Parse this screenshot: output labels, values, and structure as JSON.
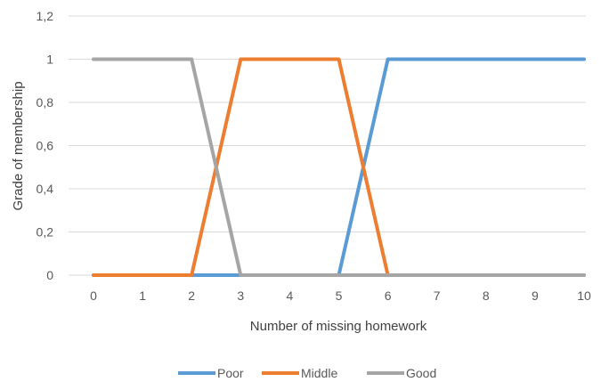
{
  "chart_data": {
    "type": "line",
    "title": "",
    "xlabel": "Number of missing homework",
    "ylabel": "Grade of membership",
    "x": [
      0,
      1,
      2,
      3,
      4,
      5,
      6,
      7,
      8,
      9,
      10
    ],
    "x_tick_labels": [
      "0",
      "1",
      "2",
      "3",
      "4",
      "5",
      "6",
      "7",
      "8",
      "9",
      "10"
    ],
    "y_ticks": [
      0,
      0.2,
      0.4,
      0.6,
      0.8,
      1,
      1.2
    ],
    "y_tick_labels": [
      "0",
      "0,2",
      "0,4",
      "0,6",
      "0,8",
      "1",
      "1,2"
    ],
    "ylim": [
      0,
      1.2
    ],
    "grid": true,
    "legend_position": "bottom",
    "series": [
      {
        "name": "Poor",
        "color": "#5b9bd5",
        "values": [
          0,
          0,
          0,
          0,
          0,
          0,
          1,
          1,
          1,
          1,
          1
        ]
      },
      {
        "name": "Middle",
        "color": "#ed7d31",
        "values": [
          0,
          0,
          0,
          1,
          1,
          1,
          0,
          0,
          0,
          0,
          0
        ]
      },
      {
        "name": "Good",
        "color": "#a5a5a5",
        "values": [
          1,
          1,
          1,
          0,
          0,
          0,
          0,
          0,
          0,
          0,
          0
        ]
      }
    ]
  }
}
